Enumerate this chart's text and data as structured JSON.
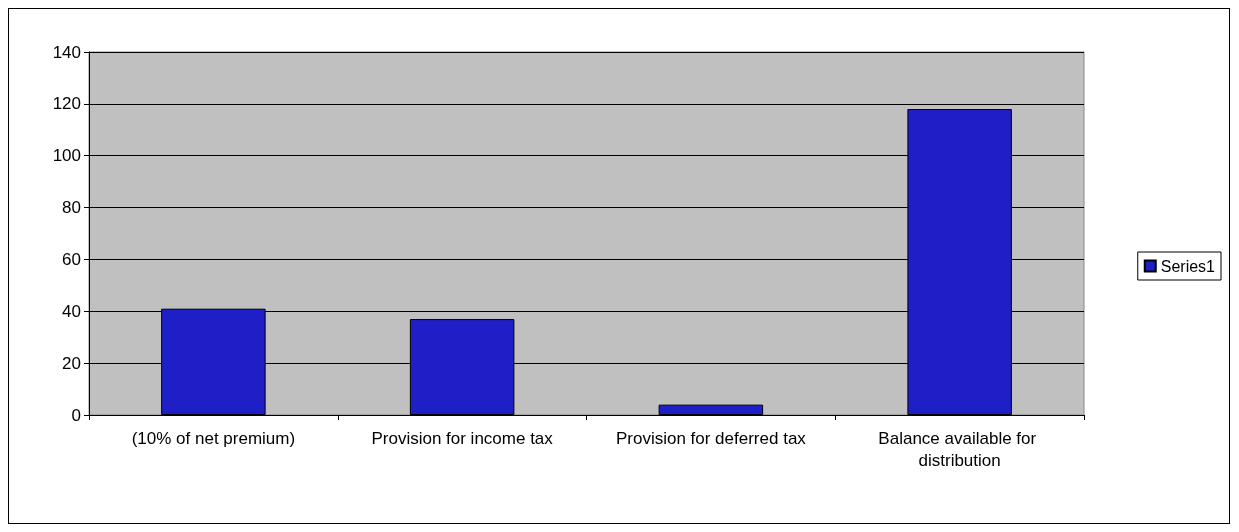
{
  "chart_data": {
    "type": "bar",
    "categories": [
      "(10% of net premium)",
      "Provision for income tax",
      "Provision for deferred tax",
      "Balance available for distribution"
    ],
    "series": [
      {
        "name": "Series1",
        "color": "#1f1fc8",
        "values": [
          41,
          37,
          4,
          118
        ]
      }
    ],
    "ylim": [
      0,
      140
    ],
    "yticks": [
      0,
      20,
      40,
      60,
      80,
      100,
      120,
      140
    ],
    "grid": "y",
    "legend": "right"
  }
}
